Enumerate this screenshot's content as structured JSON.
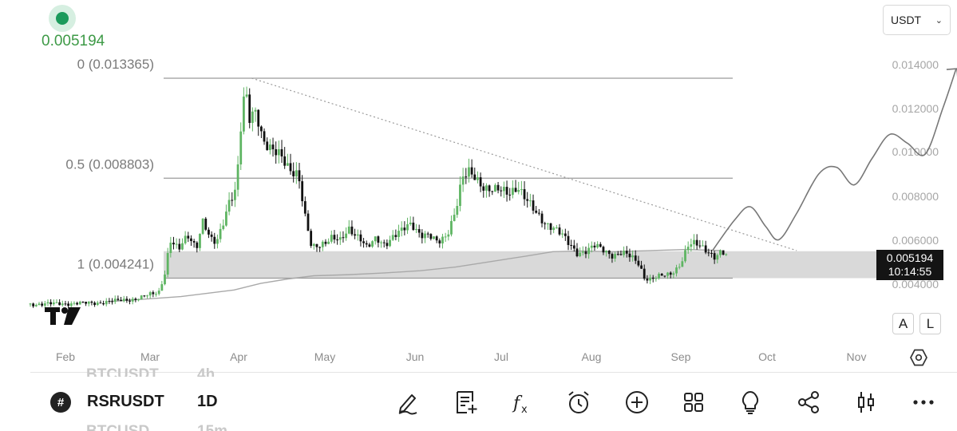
{
  "header": {
    "live_price": "0.005194",
    "currency": "USDT"
  },
  "chart_data": {
    "type": "candlestick",
    "symbol": "RSRUSDT",
    "timeframe": "1D",
    "x_months": [
      "Feb",
      "Mar",
      "Apr",
      "May",
      "Jun",
      "Jul",
      "Aug",
      "Sep",
      "Oct",
      "Nov"
    ],
    "y_ticks": [
      "0.014000",
      "0.012000",
      "0.010000",
      "0.008000",
      "0.006000",
      "0.004000"
    ],
    "ylim": [
      0.0028,
      0.0149
    ],
    "fib_levels": [
      {
        "label": "0 (0.013365)",
        "value": 0.013365
      },
      {
        "label": "0.5 (0.008803)",
        "value": 0.008803
      },
      {
        "label": "1 (0.004241)",
        "value": 0.004241
      }
    ],
    "support_zone": {
      "low": 0.004241,
      "high": 0.00547
    },
    "close_series": [
      {
        "t": 0.0,
        "c": 0.00305
      },
      {
        "t": 1.5,
        "c": 0.00311
      },
      {
        "t": 2.4,
        "c": 0.0033
      },
      {
        "t": 2.9,
        "c": 0.0036
      },
      {
        "t": 3.05,
        "c": 0.0046
      },
      {
        "t": 3.15,
        "c": 0.006
      },
      {
        "t": 3.35,
        "c": 0.0055
      },
      {
        "t": 3.55,
        "c": 0.0062
      },
      {
        "t": 3.75,
        "c": 0.0057
      },
      {
        "t": 3.9,
        "c": 0.0069
      },
      {
        "t": 4.05,
        "c": 0.006
      },
      {
        "t": 4.2,
        "c": 0.0058
      },
      {
        "t": 4.35,
        "c": 0.0068
      },
      {
        "t": 4.5,
        "c": 0.0079
      },
      {
        "t": 4.65,
        "c": 0.0083
      },
      {
        "t": 4.75,
        "c": 0.011
      },
      {
        "t": 4.85,
        "c": 0.0128
      },
      {
        "t": 4.95,
        "c": 0.0115
      },
      {
        "t": 5.1,
        "c": 0.012
      },
      {
        "t": 5.25,
        "c": 0.0106
      },
      {
        "t": 5.45,
        "c": 0.01
      },
      {
        "t": 5.65,
        "c": 0.0098
      },
      {
        "t": 5.85,
        "c": 0.0093
      },
      {
        "t": 6.05,
        "c": 0.009
      },
      {
        "t": 6.2,
        "c": 0.007
      },
      {
        "t": 6.35,
        "c": 0.0056
      },
      {
        "t": 6.55,
        "c": 0.0058
      },
      {
        "t": 6.8,
        "c": 0.0061
      },
      {
        "t": 7.0,
        "c": 0.0059
      },
      {
        "t": 7.2,
        "c": 0.0065
      },
      {
        "t": 7.45,
        "c": 0.0061
      },
      {
        "t": 7.6,
        "c": 0.0056
      },
      {
        "t": 7.8,
        "c": 0.006
      },
      {
        "t": 8.0,
        "c": 0.0058
      },
      {
        "t": 8.2,
        "c": 0.0062
      },
      {
        "t": 8.4,
        "c": 0.0064
      },
      {
        "t": 8.6,
        "c": 0.0067
      },
      {
        "t": 8.8,
        "c": 0.0063
      },
      {
        "t": 9.0,
        "c": 0.0062
      },
      {
        "t": 9.2,
        "c": 0.0058
      },
      {
        "t": 9.4,
        "c": 0.0062
      },
      {
        "t": 9.6,
        "c": 0.0074
      },
      {
        "t": 9.75,
        "c": 0.0088
      },
      {
        "t": 9.9,
        "c": 0.009
      },
      {
        "t": 10.05,
        "c": 0.0088
      },
      {
        "t": 10.2,
        "c": 0.0085
      },
      {
        "t": 10.4,
        "c": 0.0083
      },
      {
        "t": 10.6,
        "c": 0.0082
      },
      {
        "t": 10.8,
        "c": 0.0081
      },
      {
        "t": 11.0,
        "c": 0.0085
      },
      {
        "t": 11.2,
        "c": 0.0078
      },
      {
        "t": 11.4,
        "c": 0.0072
      },
      {
        "t": 11.6,
        "c": 0.0068
      },
      {
        "t": 11.8,
        "c": 0.0066
      },
      {
        "t": 12.0,
        "c": 0.0062
      },
      {
        "t": 12.15,
        "c": 0.0058
      },
      {
        "t": 12.35,
        "c": 0.0054
      },
      {
        "t": 12.55,
        "c": 0.0055
      },
      {
        "t": 12.75,
        "c": 0.0057
      },
      {
        "t": 12.95,
        "c": 0.0055
      },
      {
        "t": 13.15,
        "c": 0.0053
      },
      {
        "t": 13.35,
        "c": 0.0054
      },
      {
        "t": 13.55,
        "c": 0.0052
      },
      {
        "t": 13.75,
        "c": 0.0049
      },
      {
        "t": 13.85,
        "c": 0.0043
      },
      {
        "t": 14.0,
        "c": 0.0042
      },
      {
        "t": 14.2,
        "c": 0.0043
      },
      {
        "t": 14.4,
        "c": 0.0044
      },
      {
        "t": 14.55,
        "c": 0.0046
      },
      {
        "t": 14.7,
        "c": 0.005
      },
      {
        "t": 14.85,
        "c": 0.0057
      },
      {
        "t": 15.0,
        "c": 0.0058
      },
      {
        "t": 15.15,
        "c": 0.0057
      },
      {
        "t": 15.3,
        "c": 0.0055
      },
      {
        "t": 15.45,
        "c": 0.0052
      },
      {
        "t": 15.6,
        "c": 0.0054
      },
      {
        "t": 15.75,
        "c": 0.005194
      }
    ],
    "moving_average": [
      {
        "t": 1.8,
        "v": 0.00318
      },
      {
        "t": 2.7,
        "v": 0.0033
      },
      {
        "t": 3.4,
        "v": 0.0034
      },
      {
        "t": 4.0,
        "v": 0.00355
      },
      {
        "t": 4.6,
        "v": 0.0037
      },
      {
        "t": 5.2,
        "v": 0.004
      },
      {
        "t": 5.8,
        "v": 0.0042
      },
      {
        "t": 6.4,
        "v": 0.00435
      },
      {
        "t": 7.2,
        "v": 0.0044
      },
      {
        "t": 8.0,
        "v": 0.00448
      },
      {
        "t": 8.8,
        "v": 0.00458
      },
      {
        "t": 9.6,
        "v": 0.00475
      },
      {
        "t": 10.4,
        "v": 0.005
      },
      {
        "t": 11.2,
        "v": 0.00525
      },
      {
        "t": 11.8,
        "v": 0.00545
      },
      {
        "t": 12.4,
        "v": 0.00548
      },
      {
        "t": 13.2,
        "v": 0.00545
      },
      {
        "t": 14.0,
        "v": 0.0055
      },
      {
        "t": 14.8,
        "v": 0.00555
      },
      {
        "t": 15.6,
        "v": 0.0055
      }
    ],
    "trendline": {
      "from": {
        "t": 5.0,
        "v": 0.013365
      },
      "to": {
        "t": 17.3,
        "v": 0.0055
      }
    },
    "projection": [
      {
        "t": 15.4,
        "v": 0.0055
      },
      {
        "t": 15.9,
        "v": 0.0069
      },
      {
        "t": 16.25,
        "v": 0.0075
      },
      {
        "t": 16.6,
        "v": 0.0066
      },
      {
        "t": 16.9,
        "v": 0.006
      },
      {
        "t": 17.3,
        "v": 0.0072
      },
      {
        "t": 17.8,
        "v": 0.009
      },
      {
        "t": 18.2,
        "v": 0.0093
      },
      {
        "t": 18.6,
        "v": 0.0085
      },
      {
        "t": 19.0,
        "v": 0.0097
      },
      {
        "t": 19.4,
        "v": 0.0108
      },
      {
        "t": 19.8,
        "v": 0.0104
      },
      {
        "t": 20.2,
        "v": 0.0099
      },
      {
        "t": 20.6,
        "v": 0.012
      },
      {
        "t": 20.9,
        "v": 0.0138
      }
    ],
    "last_price_tag": {
      "price": "0.005194",
      "countdown": "10:14:55"
    }
  },
  "right_controls": {
    "auto_label": "A",
    "log_label": "L"
  },
  "bottom_bar": {
    "ghost_symbol_prev": "BTCUSDT",
    "ghost_tf_prev": "4h",
    "ghost_symbol_next": "BTCUSD",
    "ghost_tf_next": "15m",
    "symbol": "RSRUSDT",
    "timeframe": "1D",
    "tools": [
      "draw-pen-icon",
      "notes-add-icon",
      "indicator-fx-icon",
      "alarm-clock-icon",
      "add-circle-icon",
      "layout-grid-icon",
      "ideas-lightbulb-icon",
      "share-icon",
      "chart-style-icon",
      "more-dots-icon"
    ]
  },
  "colors": {
    "up_candle": "#5fb563",
    "down_candle": "#111111",
    "fib_line": "#9b9b9b",
    "zone": "#d9d9d9",
    "ma": "#a9a9a9",
    "projection": "#777777",
    "live_price": "#3e9a47"
  }
}
